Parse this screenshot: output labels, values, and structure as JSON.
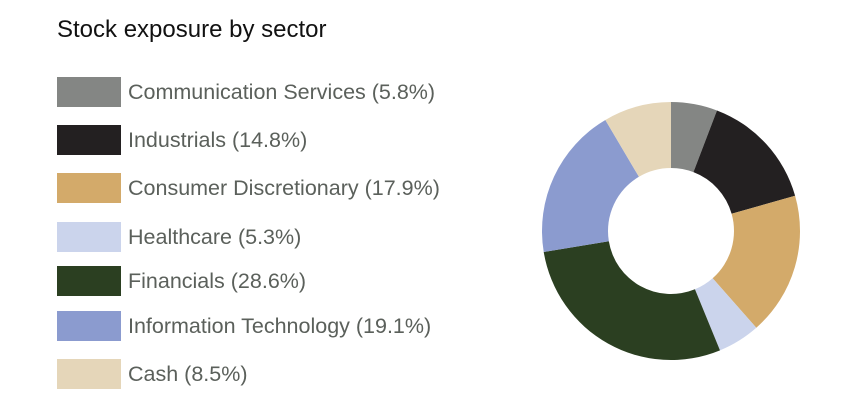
{
  "chart_data": {
    "type": "pie",
    "variant": "donut",
    "title": "Stock exposure by sector",
    "legend_position": "left",
    "start": "top, clockwise",
    "slices": [
      {
        "label": "Communication Services (5.8%)",
        "name": "Communication Services",
        "value": 5.8,
        "color": "#848684"
      },
      {
        "label": "Industrials (14.8%)",
        "name": "Industrials",
        "value": 14.8,
        "color": "#232021"
      },
      {
        "label": "Consumer Discretionary (17.9%)",
        "name": "Consumer Discretionary",
        "value": 17.9,
        "color": "#d3aa6a"
      },
      {
        "label": "Healthcare (5.3%)",
        "name": "Healthcare",
        "value": 5.3,
        "color": "#cbd4ec"
      },
      {
        "label": "Financials (28.6%)",
        "name": "Financials",
        "value": 28.6,
        "color": "#2b3f21"
      },
      {
        "label": "Information Technology (19.1%)",
        "name": "Information Technology",
        "value": 19.1,
        "color": "#8b9bcf"
      },
      {
        "label": "Cash (8.5%)",
        "name": "Cash",
        "value": 8.5,
        "color": "#e5d6b9"
      }
    ]
  }
}
